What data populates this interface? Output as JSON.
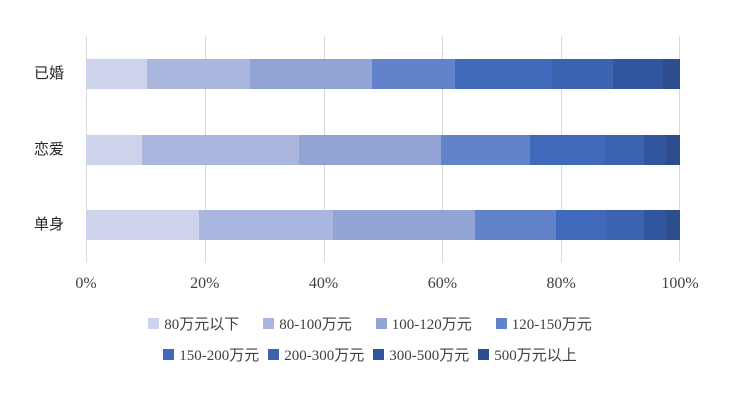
{
  "chart_data": {
    "type": "bar",
    "orientation": "horizontal",
    "stacked": true,
    "title": "",
    "categories": [
      "已婚",
      "恋爱",
      "单身"
    ],
    "series": [
      {
        "name": "80万元以下",
        "color": "#ccd3ea",
        "values": [
          10.3,
          9.4,
          19.1
        ]
      },
      {
        "name": "80-100万元",
        "color": "#aab6dd",
        "values": [
          17.3,
          26.4,
          22.4
        ]
      },
      {
        "name": "100-120万元",
        "color": "#92a3d5",
        "values": [
          20.5,
          24.0,
          24.0
        ]
      },
      {
        "name": "120-150万元",
        "color": "#6282c9",
        "values": [
          14.0,
          15.0,
          13.6
        ]
      },
      {
        "name": "150-200万元",
        "color": "#4069bb",
        "values": [
          16.3,
          12.6,
          8.4
        ]
      },
      {
        "name": "200-300万元",
        "color": "#3b63af",
        "values": [
          10.4,
          6.6,
          6.4
        ]
      },
      {
        "name": "300-500万元",
        "color": "#31569f",
        "values": [
          8.4,
          3.6,
          3.8
        ]
      },
      {
        "name": "500万元以上",
        "color": "#2e4d8e",
        "values": [
          2.8,
          2.4,
          2.3
        ]
      }
    ],
    "x_axis": {
      "tick_labels": [
        "0%",
        "20%",
        "40%",
        "60%",
        "80%",
        "100%"
      ],
      "min": 0,
      "max": 100
    },
    "grid": true,
    "gridline_color": "#d9d9d9",
    "text_color": "#404040",
    "legend_position": "bottom",
    "legend_rows": [
      [
        0,
        1,
        2,
        3
      ],
      [
        4,
        5,
        6,
        7
      ]
    ]
  }
}
